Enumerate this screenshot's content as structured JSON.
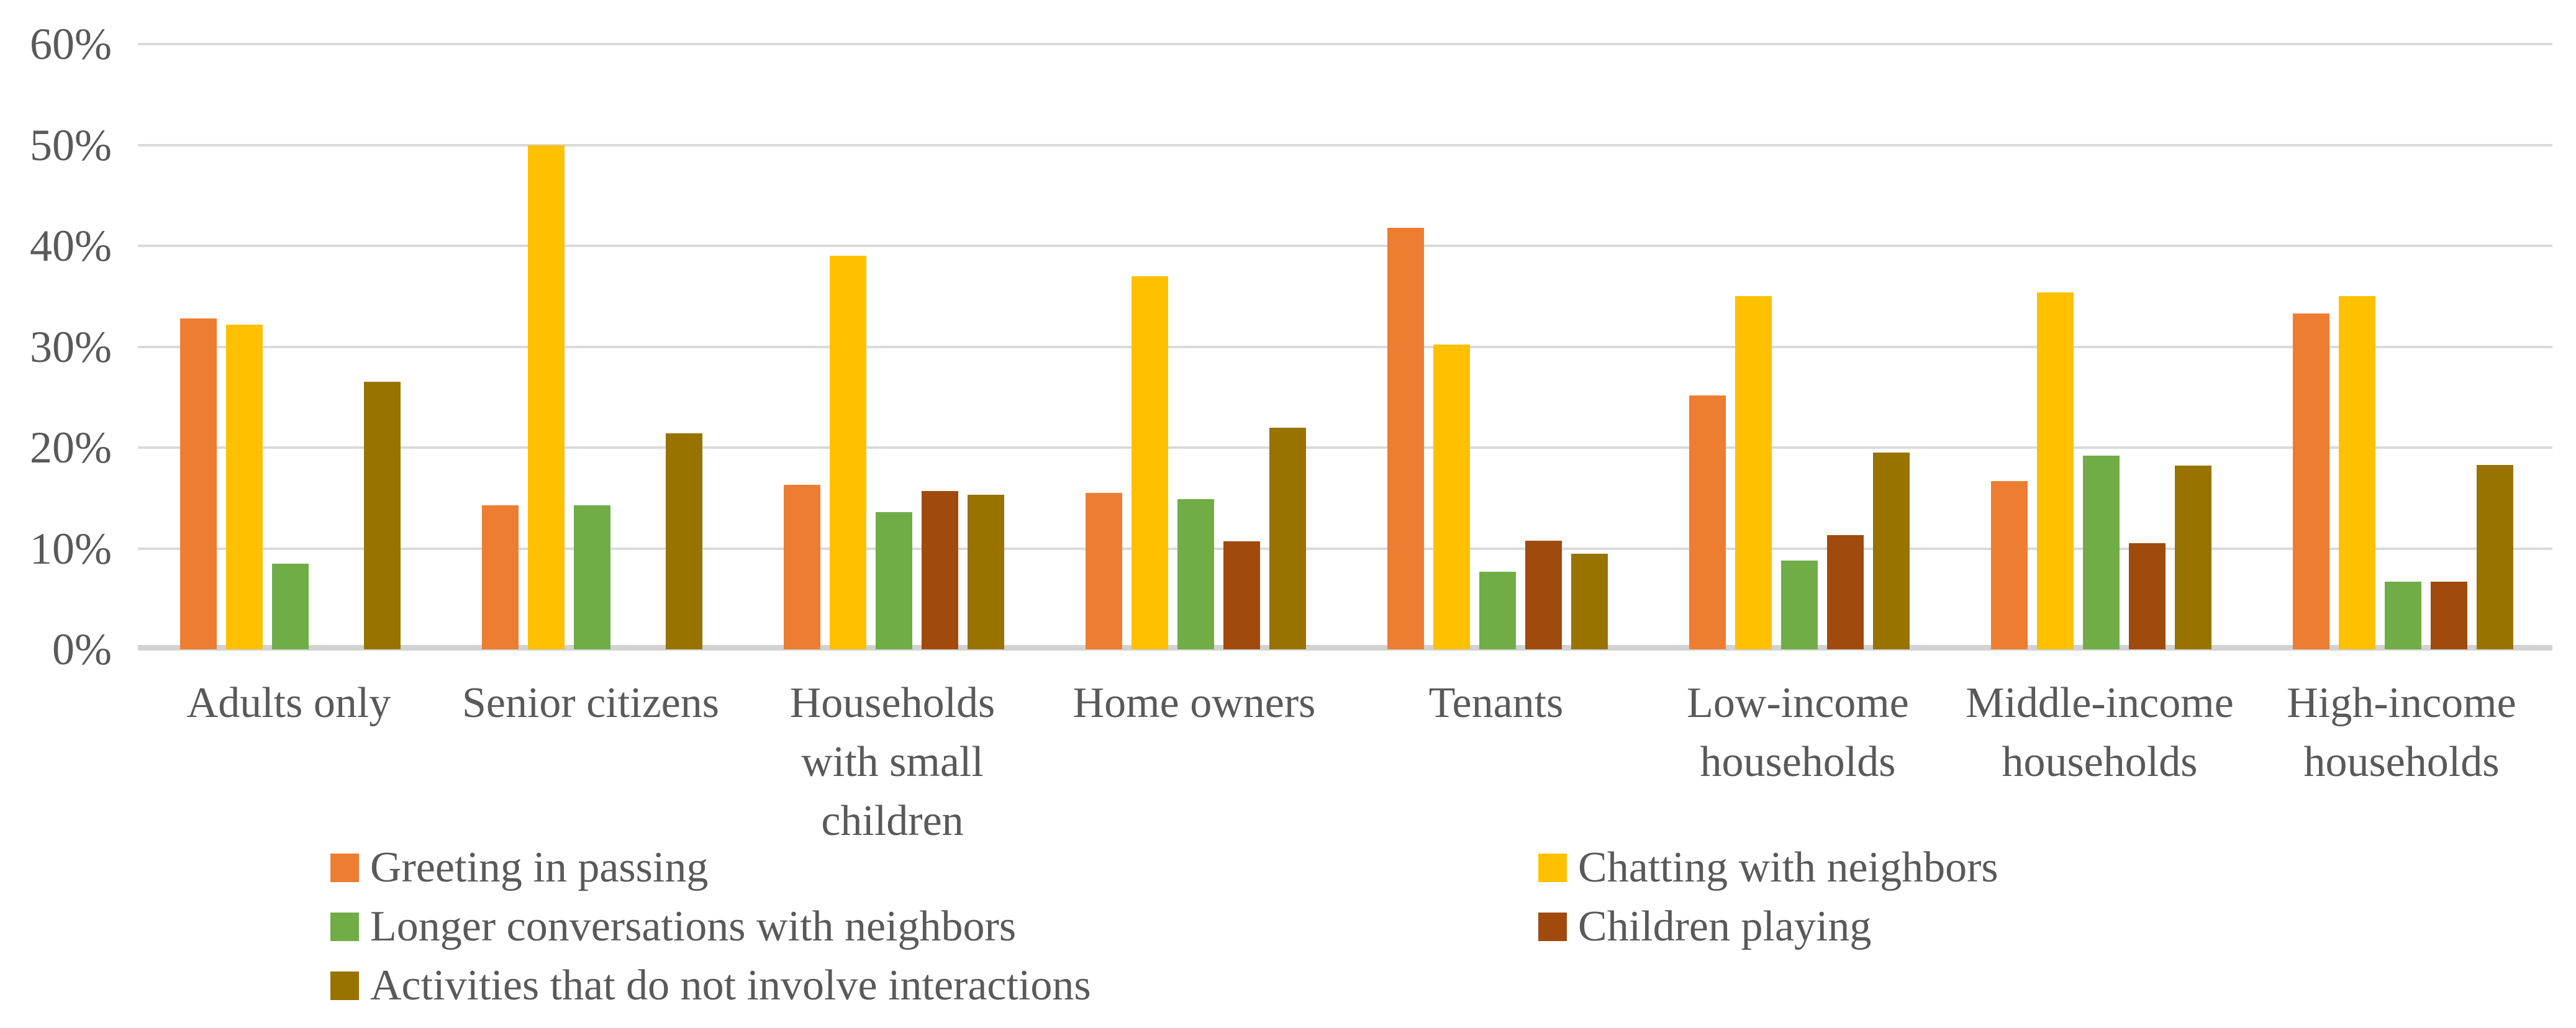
{
  "chart_data": {
    "type": "bar",
    "title": "",
    "xlabel": "",
    "ylabel": "",
    "ylim": [
      0,
      60
    ],
    "ytick_values": [
      0,
      10,
      20,
      30,
      40,
      50,
      60
    ],
    "ytick_labels": [
      "0%",
      "10%",
      "20%",
      "30%",
      "40%",
      "50%",
      "60%"
    ],
    "grid": true,
    "legend_position": "bottom",
    "categories": [
      "Adults only",
      "Senior citizens",
      "Households with small children",
      "Home owners",
      "Tenants",
      "Low-income households",
      "Middle-income households",
      "High-income households"
    ],
    "category_label_lines": [
      [
        "Adults only"
      ],
      [
        "Senior citizens"
      ],
      [
        "Households",
        "with small",
        "children"
      ],
      [
        "Home owners"
      ],
      [
        "Tenants"
      ],
      [
        "Low-income",
        "households"
      ],
      [
        "Middle-income",
        "households"
      ],
      [
        "High-income",
        "households"
      ]
    ],
    "series": [
      {
        "name": "Greeting in passing",
        "color": "#ED7D31",
        "values": [
          32.8,
          14.3,
          16.3,
          15.5,
          41.8,
          25.2,
          16.7,
          33.3
        ]
      },
      {
        "name": "Chatting with neighbors",
        "color": "#FFC000",
        "values": [
          32.2,
          50,
          39,
          37,
          30.2,
          35,
          35.4,
          35
        ]
      },
      {
        "name": "Longer conversations with neighbors",
        "color": "#70AD47",
        "values": [
          8.5,
          14.3,
          13.6,
          14.9,
          7.7,
          8.8,
          19.2,
          6.7
        ]
      },
      {
        "name": "Children playing",
        "color": "#A04A0E",
        "values": [
          0,
          0,
          15.7,
          10.7,
          10.8,
          11.3,
          10.5,
          6.7
        ]
      },
      {
        "name": "Activities that do not involve interactions",
        "color": "#987300",
        "values": [
          26.5,
          21.4,
          15.3,
          22,
          9.5,
          19.5,
          18.2,
          18.3
        ]
      }
    ]
  },
  "colors": {
    "text": "#595959",
    "gridline": "#DADADA",
    "axis_line": "#D2D2D2",
    "background": "#FFFFFF"
  }
}
